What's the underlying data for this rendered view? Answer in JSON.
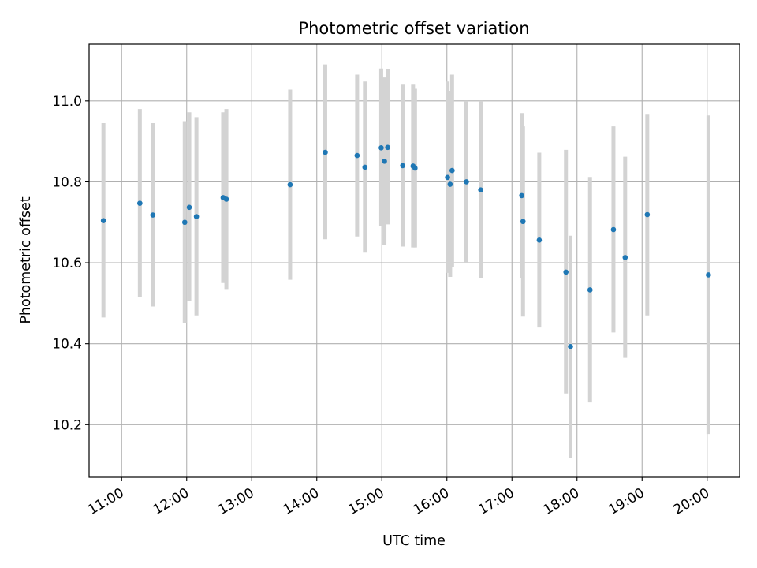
{
  "chart_data": {
    "type": "scatter",
    "title": "Photometric offset variation",
    "xlabel": "UTC time",
    "ylabel": "Photometric offset",
    "x_unit": "hours UTC",
    "xlim": [
      10.5,
      20.5
    ],
    "ylim": [
      10.07,
      11.14
    ],
    "grid": true,
    "x_ticks": [
      {
        "value": 11,
        "label": "11:00"
      },
      {
        "value": 12,
        "label": "12:00"
      },
      {
        "value": 13,
        "label": "13:00"
      },
      {
        "value": 14,
        "label": "14:00"
      },
      {
        "value": 15,
        "label": "15:00"
      },
      {
        "value": 16,
        "label": "16:00"
      },
      {
        "value": 17,
        "label": "17:00"
      },
      {
        "value": 18,
        "label": "18:00"
      },
      {
        "value": 19,
        "label": "19:00"
      },
      {
        "value": 20,
        "label": "20:00"
      }
    ],
    "y_ticks": [
      {
        "value": 10.2,
        "label": "10.2"
      },
      {
        "value": 10.4,
        "label": "10.4"
      },
      {
        "value": 10.6,
        "label": "10.6"
      },
      {
        "value": 10.8,
        "label": "10.8"
      },
      {
        "value": 11.0,
        "label": "11.0"
      }
    ],
    "series": [
      {
        "marker_color": "#1f77b4",
        "errorbar_color": "#d3d3d3",
        "points": [
          {
            "x": 10.72,
            "y": 10.704,
            "lo": 10.465,
            "hi": 10.945
          },
          {
            "x": 11.28,
            "y": 10.747,
            "lo": 10.515,
            "hi": 10.98
          },
          {
            "x": 11.48,
            "y": 10.718,
            "lo": 10.492,
            "hi": 10.945
          },
          {
            "x": 11.97,
            "y": 10.7,
            "lo": 10.452,
            "hi": 10.948
          },
          {
            "x": 12.04,
            "y": 10.737,
            "lo": 10.505,
            "hi": 10.972
          },
          {
            "x": 12.15,
            "y": 10.714,
            "lo": 10.47,
            "hi": 10.96
          },
          {
            "x": 12.56,
            "y": 10.761,
            "lo": 10.55,
            "hi": 10.972
          },
          {
            "x": 12.61,
            "y": 10.757,
            "lo": 10.535,
            "hi": 10.98
          },
          {
            "x": 13.59,
            "y": 10.793,
            "lo": 10.558,
            "hi": 11.028
          },
          {
            "x": 14.13,
            "y": 10.873,
            "lo": 10.658,
            "hi": 11.09
          },
          {
            "x": 14.62,
            "y": 10.865,
            "lo": 10.665,
            "hi": 11.065
          },
          {
            "x": 14.74,
            "y": 10.836,
            "lo": 10.625,
            "hi": 11.048
          },
          {
            "x": 14.99,
            "y": 10.884,
            "lo": 10.69,
            "hi": 11.08
          },
          {
            "x": 15.04,
            "y": 10.851,
            "lo": 10.645,
            "hi": 11.058
          },
          {
            "x": 15.09,
            "y": 10.885,
            "lo": 10.695,
            "hi": 11.078
          },
          {
            "x": 15.32,
            "y": 10.84,
            "lo": 10.64,
            "hi": 11.04
          },
          {
            "x": 15.48,
            "y": 10.839,
            "lo": 10.638,
            "hi": 11.04
          },
          {
            "x": 15.51,
            "y": 10.834,
            "lo": 10.638,
            "hi": 11.03
          },
          {
            "x": 16.01,
            "y": 10.811,
            "lo": 10.575,
            "hi": 11.048
          },
          {
            "x": 16.05,
            "y": 10.794,
            "lo": 10.565,
            "hi": 11.025
          },
          {
            "x": 16.08,
            "y": 10.828,
            "lo": 10.59,
            "hi": 11.065
          },
          {
            "x": 16.3,
            "y": 10.8,
            "lo": 10.6,
            "hi": 11.0
          },
          {
            "x": 16.52,
            "y": 10.78,
            "lo": 10.562,
            "hi": 11.0
          },
          {
            "x": 17.15,
            "y": 10.766,
            "lo": 10.562,
            "hi": 10.97
          },
          {
            "x": 17.17,
            "y": 10.702,
            "lo": 10.467,
            "hi": 10.937
          },
          {
            "x": 17.42,
            "y": 10.656,
            "lo": 10.44,
            "hi": 10.872
          },
          {
            "x": 17.83,
            "y": 10.577,
            "lo": 10.277,
            "hi": 10.879
          },
          {
            "x": 17.9,
            "y": 10.393,
            "lo": 10.118,
            "hi": 10.667
          },
          {
            "x": 18.2,
            "y": 10.533,
            "lo": 10.255,
            "hi": 10.812
          },
          {
            "x": 18.56,
            "y": 10.682,
            "lo": 10.428,
            "hi": 10.937
          },
          {
            "x": 18.74,
            "y": 10.613,
            "lo": 10.365,
            "hi": 10.862
          },
          {
            "x": 19.08,
            "y": 10.719,
            "lo": 10.47,
            "hi": 10.966
          },
          {
            "x": 20.02,
            "y": 10.57,
            "lo": 10.177,
            "hi": 10.964
          }
        ]
      }
    ]
  }
}
